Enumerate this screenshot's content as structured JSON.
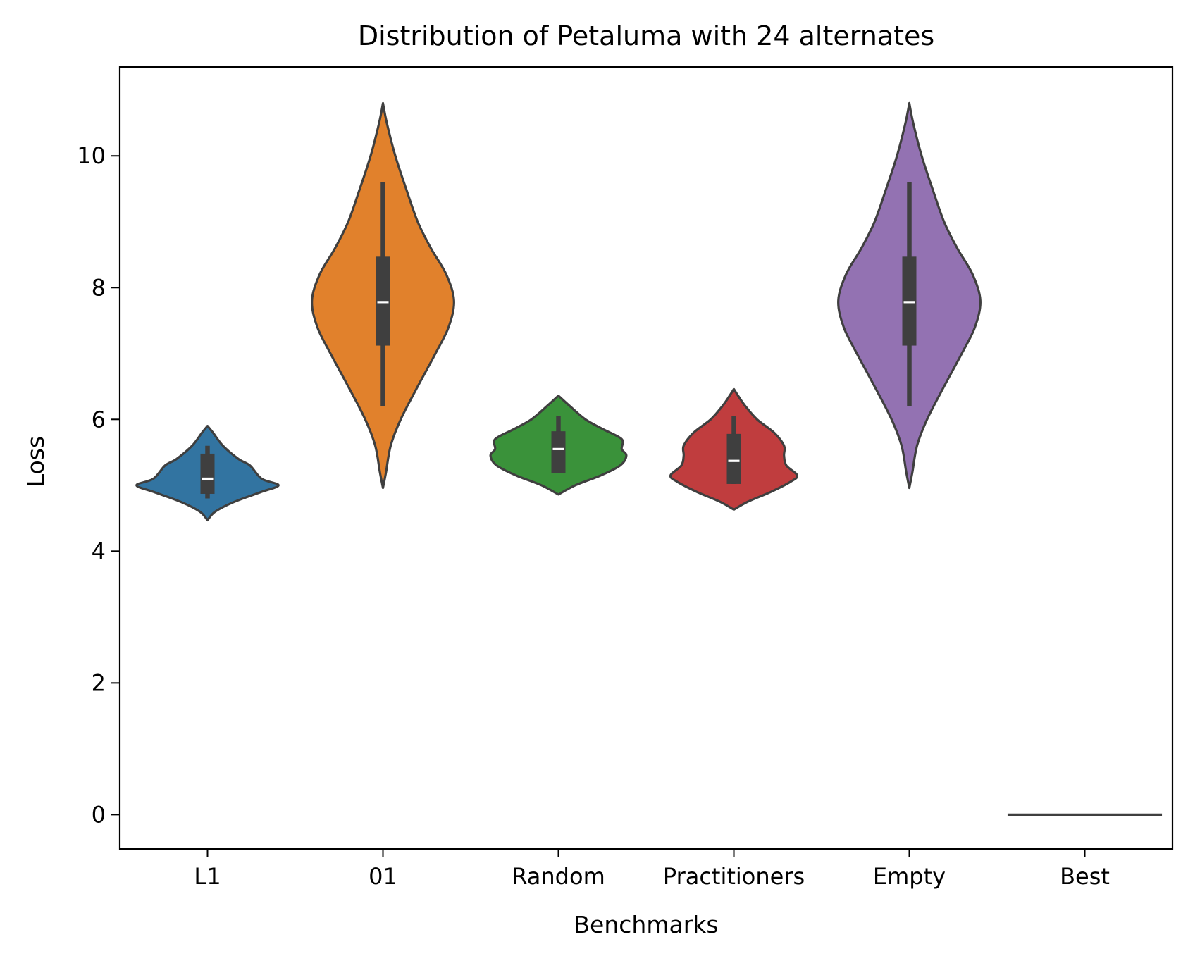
{
  "chart_data": {
    "type": "violin",
    "title": "Distribution of Petaluma with 24 alternates",
    "xlabel": "Benchmarks",
    "ylabel": "Loss",
    "ylim": [
      -0.52,
      11.35
    ],
    "yticks": [
      0,
      2,
      4,
      6,
      8,
      10
    ],
    "grid": false,
    "legend": "none",
    "categories": [
      "L1",
      "01",
      "Random",
      "Practitioners",
      "Empty",
      "Best"
    ],
    "series": [
      {
        "category": "L1",
        "color": "#3274a1",
        "min": 4.8,
        "q1": 4.87,
        "median": 5.1,
        "q3": 5.48,
        "max": 5.6,
        "density": [
          [
            4.47,
            0.0
          ],
          [
            4.6,
            0.1
          ],
          [
            4.75,
            0.35
          ],
          [
            4.9,
            0.7
          ],
          [
            5.0,
            0.92
          ],
          [
            5.1,
            0.7
          ],
          [
            5.3,
            0.55
          ],
          [
            5.4,
            0.4
          ],
          [
            5.6,
            0.2
          ],
          [
            5.8,
            0.07
          ],
          [
            5.9,
            0.0
          ]
        ]
      },
      {
        "category": "01",
        "color": "#e1812c",
        "min": 6.2,
        "q1": 7.12,
        "median": 7.78,
        "q3": 8.47,
        "max": 9.6,
        "density": [
          [
            4.96,
            0.0
          ],
          [
            5.2,
            0.04
          ],
          [
            5.6,
            0.1
          ],
          [
            6.0,
            0.23
          ],
          [
            6.5,
            0.45
          ],
          [
            7.0,
            0.68
          ],
          [
            7.4,
            0.85
          ],
          [
            7.8,
            0.92
          ],
          [
            8.2,
            0.82
          ],
          [
            8.6,
            0.62
          ],
          [
            9.0,
            0.45
          ],
          [
            9.5,
            0.3
          ],
          [
            10.0,
            0.16
          ],
          [
            10.5,
            0.05
          ],
          [
            10.8,
            0.0
          ]
        ]
      },
      {
        "category": "Random",
        "color": "#3a923a",
        "min": 5.18,
        "q1": 5.18,
        "median": 5.55,
        "q3": 5.82,
        "max": 6.05,
        "density": [
          [
            4.86,
            0.0
          ],
          [
            5.0,
            0.22
          ],
          [
            5.15,
            0.55
          ],
          [
            5.3,
            0.8
          ],
          [
            5.45,
            0.88
          ],
          [
            5.55,
            0.82
          ],
          [
            5.7,
            0.82
          ],
          [
            5.85,
            0.58
          ],
          [
            6.0,
            0.35
          ],
          [
            6.2,
            0.15
          ],
          [
            6.36,
            0.0
          ]
        ]
      },
      {
        "category": "Practitioners",
        "color": "#c03d3e",
        "min": 5.02,
        "q1": 5.02,
        "median": 5.37,
        "q3": 5.78,
        "max": 6.05,
        "density": [
          [
            4.63,
            0.0
          ],
          [
            4.75,
            0.18
          ],
          [
            4.9,
            0.48
          ],
          [
            5.05,
            0.73
          ],
          [
            5.15,
            0.82
          ],
          [
            5.3,
            0.68
          ],
          [
            5.45,
            0.65
          ],
          [
            5.6,
            0.65
          ],
          [
            5.8,
            0.52
          ],
          [
            6.0,
            0.3
          ],
          [
            6.2,
            0.15
          ],
          [
            6.35,
            0.06
          ],
          [
            6.46,
            0.0
          ]
        ]
      },
      {
        "category": "Empty",
        "color": "#9372b2",
        "min": 6.2,
        "q1": 7.12,
        "median": 7.78,
        "q3": 8.47,
        "max": 9.6,
        "density": [
          [
            4.96,
            0.0
          ],
          [
            5.2,
            0.04
          ],
          [
            5.6,
            0.1
          ],
          [
            6.0,
            0.23
          ],
          [
            6.5,
            0.45
          ],
          [
            7.0,
            0.68
          ],
          [
            7.4,
            0.85
          ],
          [
            7.8,
            0.92
          ],
          [
            8.2,
            0.82
          ],
          [
            8.6,
            0.62
          ],
          [
            9.0,
            0.45
          ],
          [
            9.5,
            0.3
          ],
          [
            10.0,
            0.16
          ],
          [
            10.5,
            0.05
          ],
          [
            10.8,
            0.0
          ]
        ]
      },
      {
        "category": "Best",
        "color": "#c1c1c1",
        "constant": 0
      }
    ]
  }
}
